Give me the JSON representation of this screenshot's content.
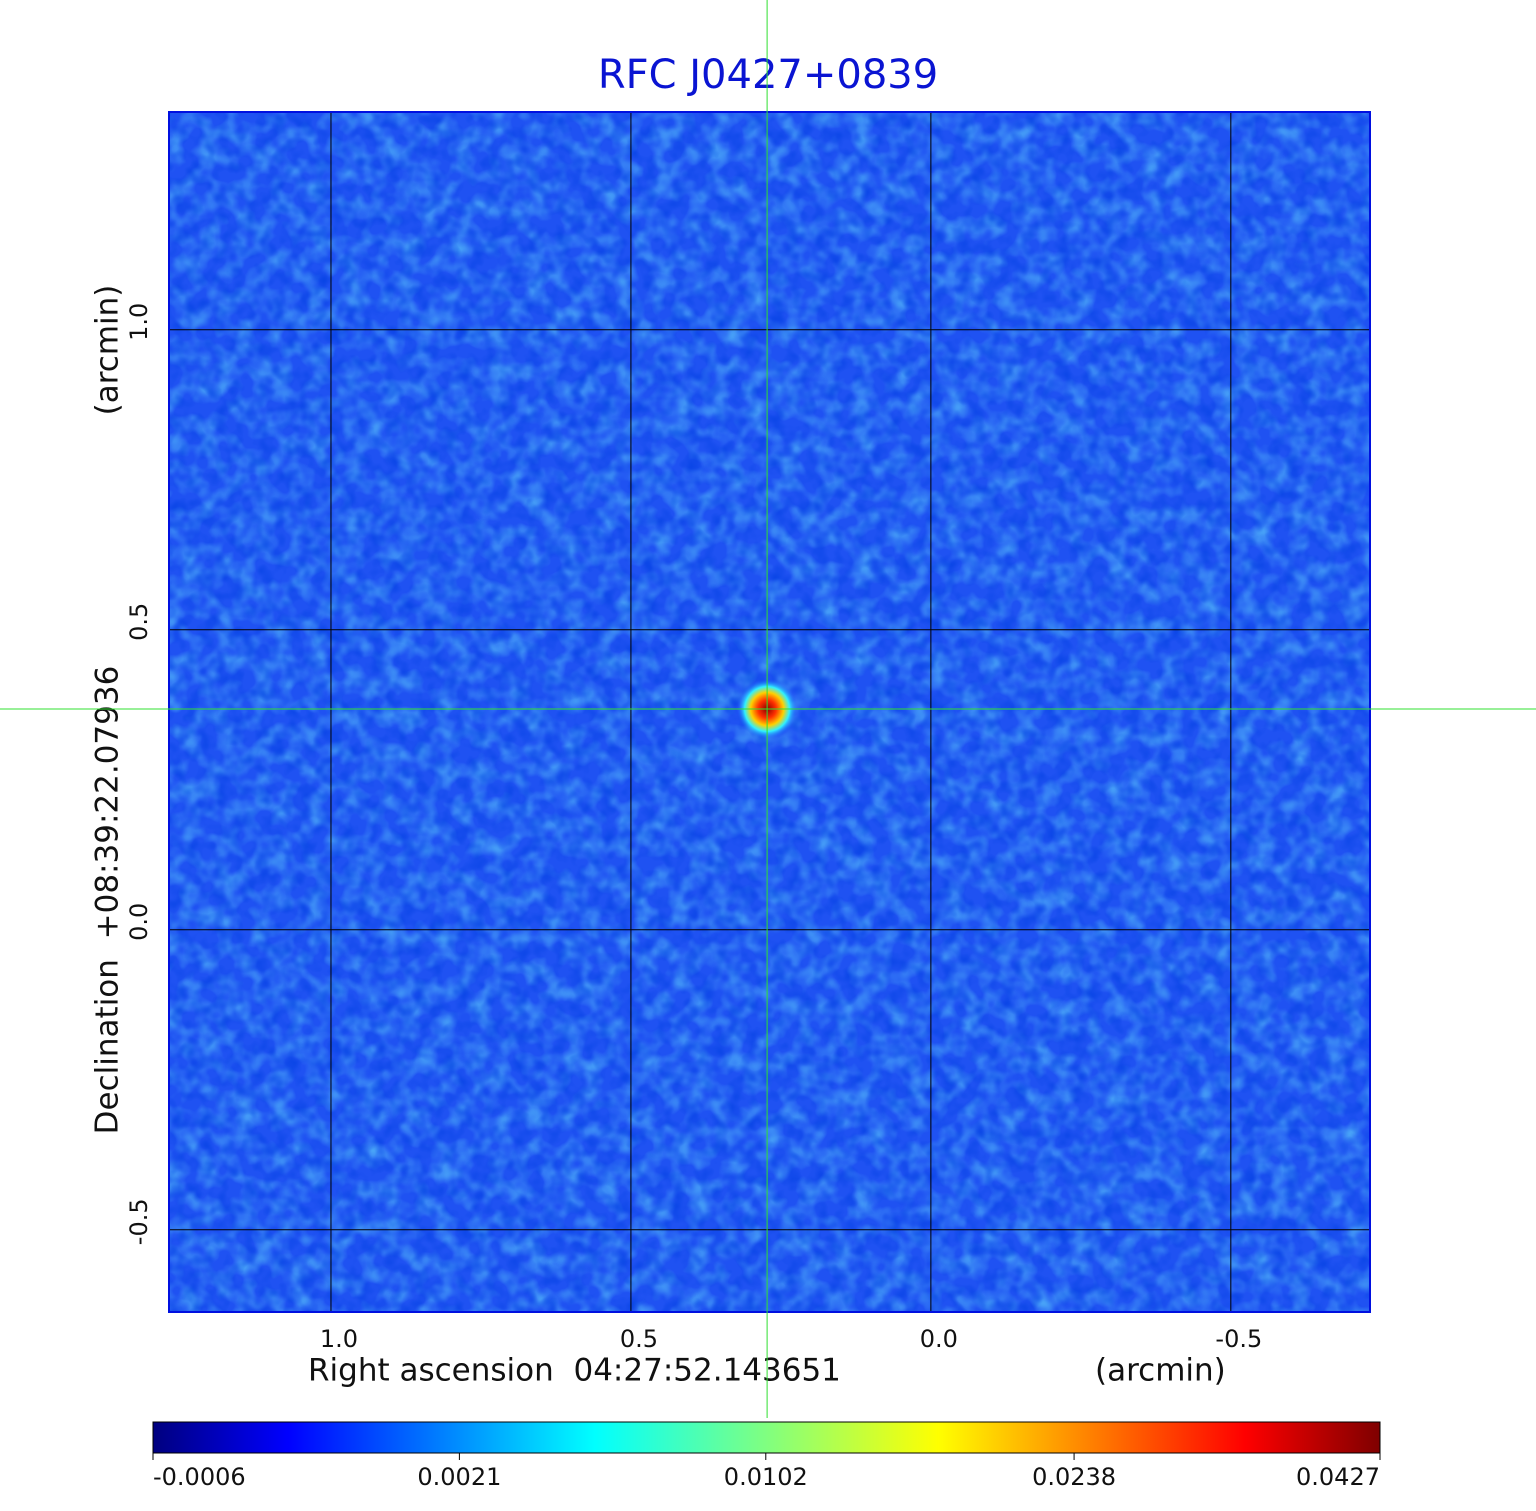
{
  "chart_data": {
    "type": "image",
    "title": "RFC J0427+0839",
    "xlabel": "Right ascension  04:27:52.143651",
    "xunit": "(arcmin)",
    "ylabel": "Declination  +08:39:22.07936",
    "yunit": "(arcmin)",
    "xlim": [
      1.27,
      -0.732
    ],
    "ylim": [
      -0.637,
      1.363
    ],
    "xticks": [
      {
        "value": 1,
        "label": "1.0"
      },
      {
        "value": 0.5,
        "label": "0.5"
      },
      {
        "value": 0,
        "label": "0.0"
      },
      {
        "value": -0.5,
        "label": "-0.5"
      }
    ],
    "yticks": [
      {
        "value": 1,
        "label": "1.0"
      },
      {
        "value": 0.5,
        "label": "0.5"
      },
      {
        "value": 0,
        "label": "0.0"
      },
      {
        "value": -0.5,
        "label": "-0.5"
      }
    ],
    "grid": true,
    "source": {
      "x": 0.273,
      "y": 0.368
    },
    "colorbar": {
      "scale": "sqrt",
      "lim": [
        -0.0006,
        0.0427
      ],
      "ticks": [
        -0.0006,
        0.0021,
        0.0102,
        0.0238,
        0.0427
      ]
    }
  }
}
